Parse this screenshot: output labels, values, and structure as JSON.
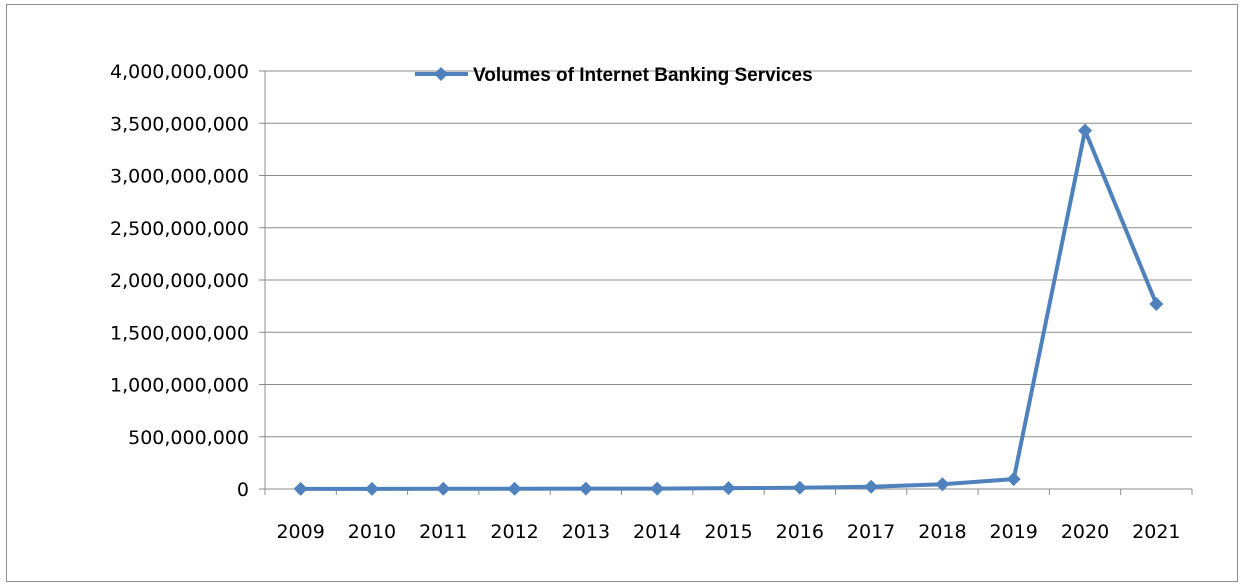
{
  "chart_data": {
    "type": "line",
    "title": "",
    "xlabel": "",
    "ylabel": "",
    "categories": [
      "2009",
      "2010",
      "2011",
      "2012",
      "2013",
      "2014",
      "2015",
      "2016",
      "2017",
      "2018",
      "2019",
      "2020",
      "2021"
    ],
    "series": [
      {
        "name": "Volumes of Internet Banking Services",
        "values": [
          1000000,
          1500000,
          2000000,
          2500000,
          3000000,
          4000000,
          8000000,
          12000000,
          22000000,
          45000000,
          95000000,
          3430000000,
          1770000000
        ],
        "color": "#4f81bd",
        "marker": "diamond"
      }
    ],
    "ylim": [
      0,
      4000000000
    ],
    "yticks": [
      0,
      500000000,
      1000000000,
      1500000000,
      2000000000,
      2500000000,
      3000000000,
      3500000000,
      4000000000
    ],
    "ytick_labels": [
      "0",
      "500,000,000",
      "1,000,000,000",
      "1,500,000,000",
      "2,000,000,000",
      "2,500,000,000",
      "3,000,000,000",
      "3,500,000,000",
      "4,000,000,000"
    ],
    "grid": true,
    "legend_position": "top"
  }
}
